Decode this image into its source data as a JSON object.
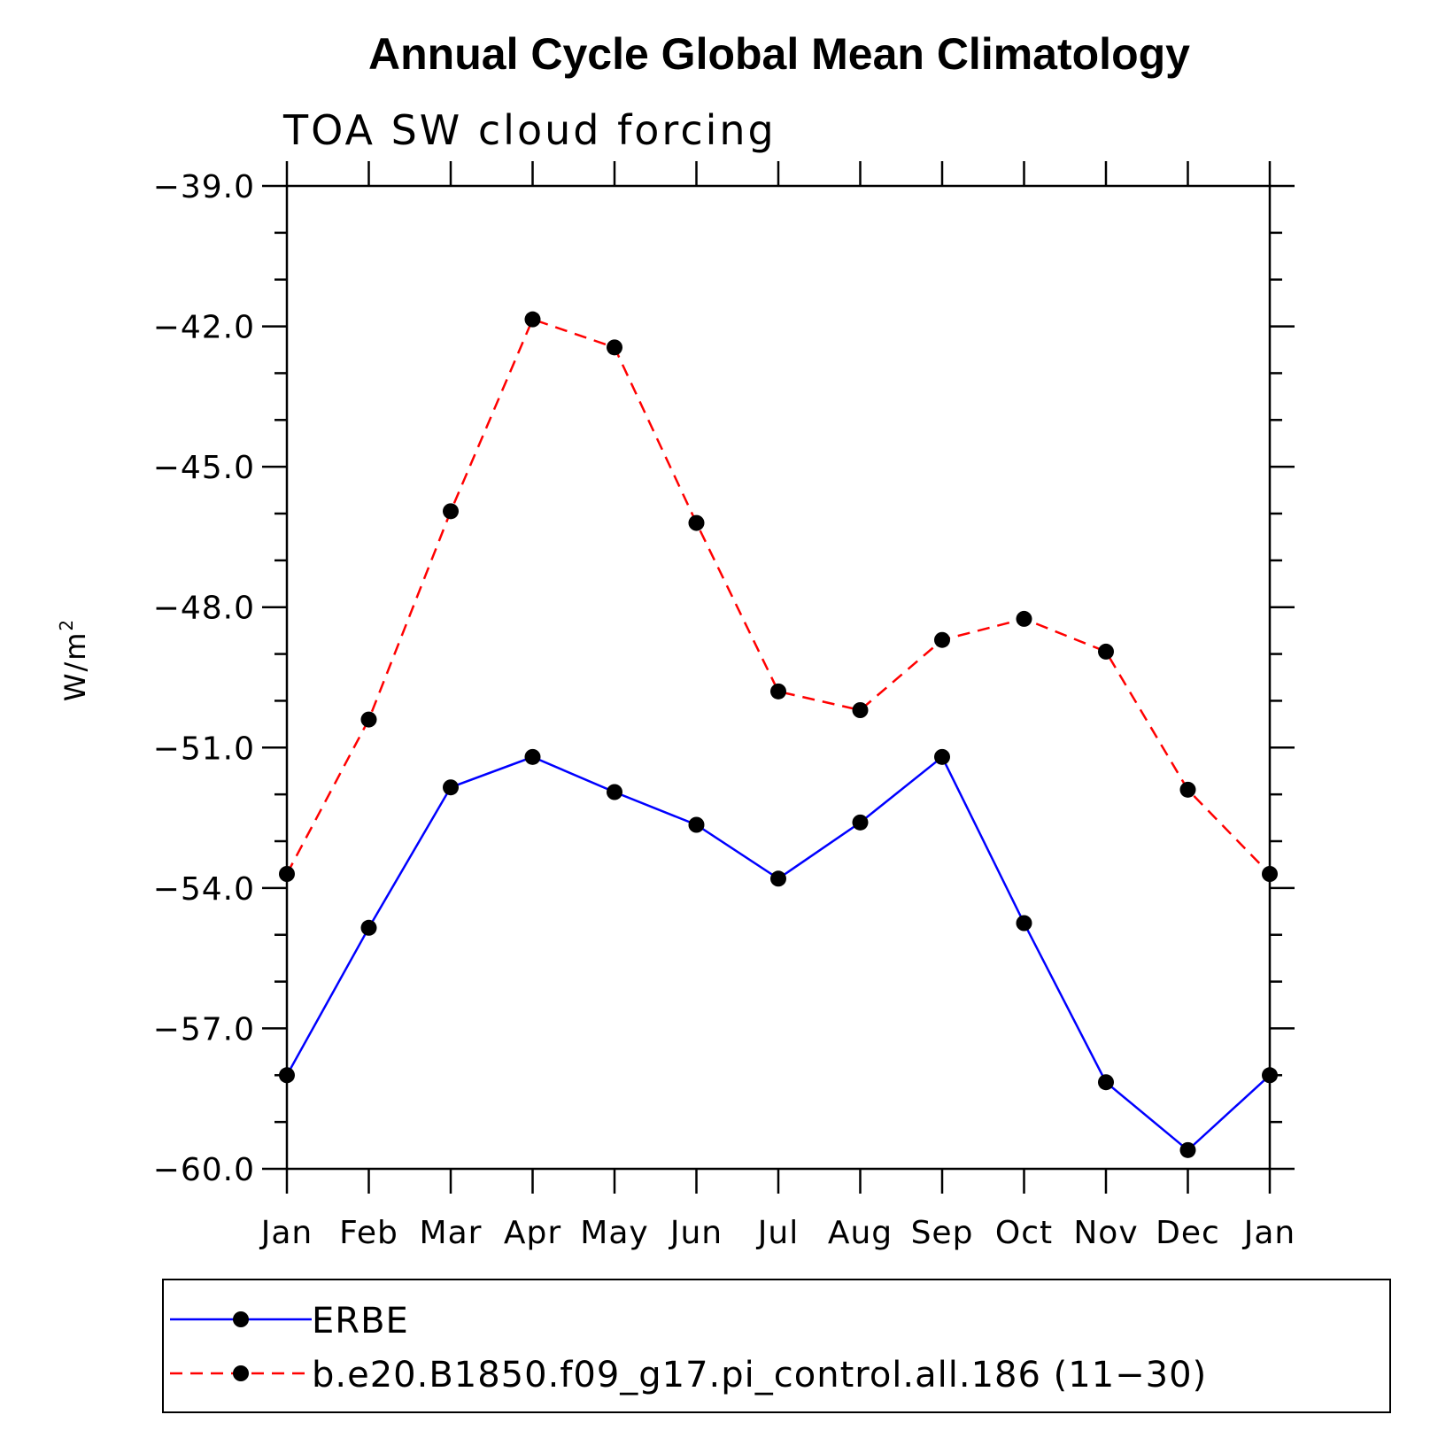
{
  "chart_data": {
    "type": "line",
    "title": "Annual Cycle Global Mean Climatology",
    "subtitle": "TOA SW cloud forcing",
    "ylabel": "W/m",
    "ylabel_superscript": "2",
    "categories": [
      "Jan",
      "Feb",
      "Mar",
      "Apr",
      "May",
      "Jun",
      "Jul",
      "Aug",
      "Sep",
      "Oct",
      "Nov",
      "Dec",
      "Jan"
    ],
    "ylim": [
      -60.0,
      -39.0
    ],
    "yticks": [
      -39.0,
      -42.0,
      -45.0,
      -48.0,
      -51.0,
      -54.0,
      -57.0,
      -60.0
    ],
    "ytick_labels": [
      "−39.0",
      "−42.0",
      "−45.0",
      "−48.0",
      "−51.0",
      "−54.0",
      "−57.0",
      "−60.0"
    ],
    "minor_tick_step": 1.0,
    "grid": false,
    "legend_position": "bottom",
    "series": [
      {
        "name": "ERBE",
        "color": "#0000ff",
        "line_style": "solid",
        "marker": "filled-circle",
        "marker_color": "#000000",
        "values": [
          -58.0,
          -54.85,
          -51.85,
          -51.2,
          -51.95,
          -52.65,
          -53.8,
          -52.6,
          -51.2,
          -54.75,
          -58.15,
          -59.6,
          -58.0
        ]
      },
      {
        "name": "b.e20.B1850.f09_g17.pi_control.all.186 (11−30)",
        "color": "#ff0000",
        "line_style": "dashed",
        "marker": "filled-circle",
        "marker_color": "#000000",
        "values": [
          -53.7,
          -50.4,
          -45.95,
          -41.85,
          -42.45,
          -46.2,
          -49.8,
          -50.2,
          -48.7,
          -48.25,
          -48.95,
          -51.9,
          -53.7
        ]
      }
    ]
  }
}
